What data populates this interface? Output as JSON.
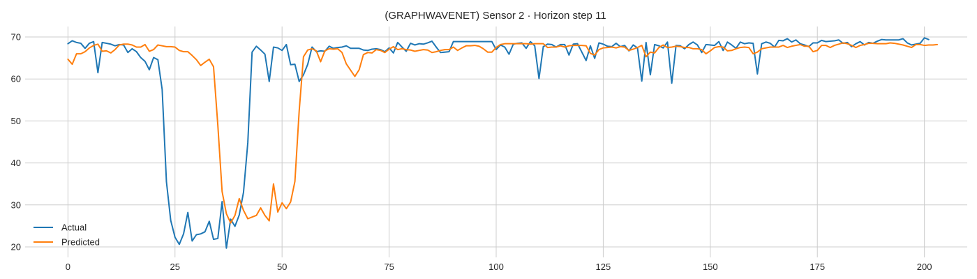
{
  "chart_data": {
    "type": "line",
    "title": "(GRAPHWAVENET) Sensor 2 · Horizon step 11",
    "xlabel": "",
    "ylabel": "",
    "xlim": [
      -10,
      210
    ],
    "ylim": [
      17.5,
      72.5
    ],
    "xticks": [
      0,
      25,
      50,
      75,
      100,
      125,
      150,
      175,
      200
    ],
    "yticks": [
      20,
      30,
      40,
      50,
      60,
      70
    ],
    "grid": true,
    "legend_position": "lower-left",
    "colors": {
      "actual": "#1f77b4",
      "predicted": "#ff7f0e"
    },
    "x_start": 0,
    "series": [
      {
        "name": "Actual",
        "values": [
          68.4,
          69.1,
          68.7,
          68.5,
          67.3,
          68.5,
          68.9,
          61.5,
          68.7,
          68.5,
          68.3,
          67.9,
          68.2,
          68.1,
          66.3,
          67.2,
          66.5,
          65.1,
          64.2,
          62.2,
          65.1,
          64.6,
          57.5,
          35.5,
          26.3,
          22.3,
          20.6,
          23.1,
          28.2,
          21.4,
          22.9,
          23.1,
          23.6,
          26.1,
          21.8,
          22.0,
          30.8,
          19.7,
          26.6,
          24.9,
          27.6,
          33.0,
          44.8,
          66.4,
          67.8,
          66.9,
          65.9,
          59.4,
          67.6,
          67.4,
          66.8,
          68.2,
          63.4,
          63.5,
          59.4,
          61.0,
          63.5,
          67.6,
          66.5,
          66.7,
          66.6,
          67.8,
          67.3,
          67.5,
          67.6,
          67.9,
          67.3,
          67.3,
          67.3,
          66.9,
          66.8,
          67.1,
          67.2,
          67.0,
          66.5,
          67.4,
          66.2,
          68.7,
          67.6,
          66.6,
          68.5,
          68.1,
          68.4,
          68.3,
          68.6,
          69.0,
          67.6,
          66.3,
          66.4,
          66.5,
          68.9,
          68.9,
          68.9,
          68.9,
          68.9,
          68.9,
          68.9,
          68.9,
          68.9,
          68.9,
          67.0,
          68.1,
          67.6,
          65.9,
          68.3,
          68.5,
          68.6,
          67.3,
          68.9,
          67.9,
          60.1,
          67.7,
          68.3,
          68.2,
          67.6,
          68.2,
          68.2,
          65.7,
          68.3,
          68.4,
          66.4,
          64.4,
          67.9,
          64.9,
          68.6,
          68.3,
          67.8,
          67.7,
          68.5,
          67.7,
          68.0,
          66.7,
          68.1,
          67.4,
          59.5,
          68.7,
          61.0,
          68.2,
          67.9,
          67.4,
          68.8,
          59.0,
          68.0,
          67.9,
          67.2,
          68.2,
          68.8,
          68.1,
          66.3,
          68.2,
          68.1,
          68.0,
          68.9,
          66.8,
          68.8,
          68.1,
          67.3,
          68.8,
          68.4,
          68.6,
          68.5,
          61.2,
          68.4,
          68.8,
          68.5,
          67.6,
          69.2,
          69.1,
          69.6,
          68.8,
          69.3,
          68.4,
          68.1,
          67.7,
          68.6,
          68.6,
          69.2,
          68.9,
          69.0,
          69.1,
          69.3,
          68.5,
          68.7,
          67.7,
          68.4,
          68.9,
          68.1,
          68.7,
          68.5,
          69.0,
          69.4,
          69.3,
          69.3,
          69.3,
          69.3,
          69.6,
          68.6,
          68.1,
          68.3,
          68.5,
          69.8,
          69.4
        ]
      },
      {
        "name": "Predicted",
        "values": [
          64.7,
          63.5,
          66.0,
          66.0,
          66.5,
          67.4,
          68.0,
          68.3,
          66.6,
          66.7,
          66.2,
          67.0,
          68.1,
          68.3,
          68.3,
          68.1,
          67.6,
          67.6,
          68.2,
          66.6,
          67.0,
          68.1,
          67.9,
          67.7,
          67.7,
          67.6,
          66.8,
          66.5,
          66.5,
          65.6,
          64.6,
          63.2,
          64.0,
          64.7,
          62.9,
          49.0,
          33.2,
          27.9,
          25.7,
          27.5,
          31.5,
          28.7,
          26.7,
          27.1,
          27.5,
          29.3,
          27.5,
          26.2,
          35.0,
          28.3,
          30.5,
          29.1,
          30.7,
          35.6,
          52.4,
          65.3,
          66.9,
          67.2,
          66.7,
          64.1,
          66.7,
          67.2,
          67.1,
          67.2,
          66.3,
          63.6,
          62.1,
          60.6,
          62.2,
          65.8,
          66.3,
          66.2,
          67.0,
          66.8,
          66.3,
          67.1,
          67.7,
          67.0,
          67.2,
          67.0,
          66.9,
          66.6,
          66.8,
          67.0,
          66.9,
          66.3,
          66.5,
          66.8,
          67.0,
          67.0,
          67.6,
          66.8,
          67.4,
          67.9,
          67.9,
          68.0,
          67.8,
          67.2,
          66.4,
          66.4,
          67.5,
          68.2,
          68.4,
          68.4,
          68.4,
          68.4,
          68.4,
          68.4,
          68.3,
          68.4,
          68.4,
          68.4,
          67.5,
          67.6,
          67.6,
          67.9,
          67.6,
          67.9,
          68.0,
          68.0,
          68.0,
          67.9,
          66.1,
          65.7,
          67.0,
          67.4,
          67.5,
          67.6,
          67.4,
          67.7,
          67.6,
          66.8,
          67.1,
          67.5,
          68.0,
          65.3,
          66.4,
          66.2,
          67.5,
          68.1,
          67.5,
          67.6,
          67.8,
          67.7,
          67.5,
          67.5,
          67.2,
          67.2,
          67.0,
          66.0,
          66.7,
          67.5,
          67.7,
          67.6,
          66.7,
          66.8,
          67.2,
          67.5,
          67.6,
          67.5,
          66.0,
          66.4,
          67.2,
          67.4,
          67.6,
          67.6,
          67.6,
          68.0,
          67.5,
          67.8,
          68.0,
          68.2,
          67.8,
          67.8,
          66.5,
          66.8,
          68.0,
          68.0,
          67.5,
          68.0,
          68.3,
          68.6,
          68.4,
          68.0,
          67.5,
          68.0,
          68.2,
          68.5,
          68.5,
          68.4,
          68.4,
          68.4,
          68.6,
          68.5,
          68.3,
          68.1,
          67.8,
          67.5,
          68.2,
          68.2,
          68.0,
          68.1,
          68.1,
          68.2
        ]
      }
    ]
  }
}
